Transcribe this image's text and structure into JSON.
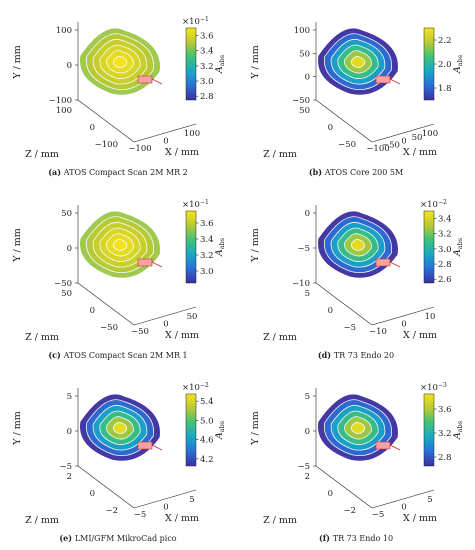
{
  "chart_data": [
    {
      "type": "3d-contour",
      "panel": "(a)",
      "caption": "ATOS Compact Scan 2M MR 2",
      "ylabel": "Y / mm",
      "zlabel": "Z / mm",
      "xlabel": "X / mm",
      "y_ticks": [
        "100",
        "0",
        "−100"
      ],
      "z_ticks": [
        "100",
        "0",
        "−100"
      ],
      "x_ticks": [
        "−100",
        "0",
        "100"
      ],
      "colorbar": {
        "label": "A",
        "label_sub": "abs",
        "exponent": "×10",
        "exponent_power": "−1",
        "ticks": [
          "3.6",
          "3.4",
          "3.2",
          "3.0",
          "2.8"
        ],
        "range": [
          2.75,
          3.7
        ]
      }
    },
    {
      "type": "3d-contour",
      "panel": "(b)",
      "caption": "ATOS Core 200 5M",
      "ylabel": "Y / mm",
      "zlabel": "Z / mm",
      "xlabel": "X / mm",
      "y_ticks": [
        "100",
        "50",
        "0",
        "−50"
      ],
      "z_ticks": [
        "50",
        "0",
        "−50"
      ],
      "x_ticks": [
        "−100",
        "−50",
        "0",
        "50",
        "100"
      ],
      "colorbar": {
        "label": "A",
        "label_sub": "abs",
        "exponent": "",
        "exponent_power": "",
        "ticks": [
          "2.2",
          "2.0",
          "1.8"
        ],
        "range": [
          1.7,
          2.3
        ]
      }
    },
    {
      "type": "3d-contour",
      "panel": "(c)",
      "caption": "ATOS Compact Scan 2M MR 1",
      "ylabel": "Y / mm",
      "zlabel": "Z / mm",
      "xlabel": "X / mm",
      "y_ticks": [
        "50",
        "0",
        "−50"
      ],
      "z_ticks": [
        "50",
        "0",
        "−50"
      ],
      "x_ticks": [
        "−50",
        "0",
        "50"
      ],
      "colorbar": {
        "label": "A",
        "label_sub": "abs",
        "exponent": "×10",
        "exponent_power": "−1",
        "ticks": [
          "3.6",
          "3.4",
          "3.2",
          "3.0"
        ],
        "range": [
          2.85,
          3.75
        ]
      }
    },
    {
      "type": "3d-contour",
      "panel": "(d)",
      "caption": "TR 73 Endo 20",
      "ylabel": "Y / mm",
      "zlabel": "Z / mm",
      "xlabel": "X / mm",
      "y_ticks": [
        "0",
        "−5",
        "−10"
      ],
      "z_ticks": [
        "5",
        "0",
        "−5"
      ],
      "x_ticks": [
        "−10",
        "0",
        "10"
      ],
      "colorbar": {
        "label": "A",
        "label_sub": "abs",
        "exponent": "×10",
        "exponent_power": "−2",
        "ticks": [
          "3.4",
          "3.2",
          "3.0",
          "2.8",
          "2.6"
        ],
        "range": [
          2.55,
          3.5
        ]
      }
    },
    {
      "type": "3d-contour",
      "panel": "(e)",
      "caption": "LMI/GFM MikroCad pico",
      "ylabel": "Y / mm",
      "zlabel": "Z / mm",
      "xlabel": "X / mm",
      "y_ticks": [
        "5",
        "0",
        "−5"
      ],
      "z_ticks": [
        "2",
        "0",
        "−2"
      ],
      "x_ticks": [
        "−5",
        "0",
        "5"
      ],
      "colorbar": {
        "label": "A",
        "label_sub": "abs",
        "exponent": "×10",
        "exponent_power": "−2",
        "ticks": [
          "5.4",
          "5.0",
          "4.6",
          "4.2"
        ],
        "range": [
          4.05,
          5.55
        ]
      }
    },
    {
      "type": "3d-contour",
      "panel": "(f)",
      "caption": "TR 73 Endo 10",
      "ylabel": "Y / mm",
      "zlabel": "Z / mm",
      "xlabel": "X / mm",
      "y_ticks": [
        "5",
        "0",
        "−5"
      ],
      "z_ticks": [
        "2",
        "0",
        "−2"
      ],
      "x_ticks": [
        "−5",
        "0",
        "5"
      ],
      "colorbar": {
        "label": "A",
        "label_sub": "abs",
        "exponent": "×10",
        "exponent_power": "−3",
        "ticks": [
          "3.6",
          "3.2",
          "2.8"
        ],
        "range": [
          2.65,
          3.85
        ]
      }
    }
  ]
}
